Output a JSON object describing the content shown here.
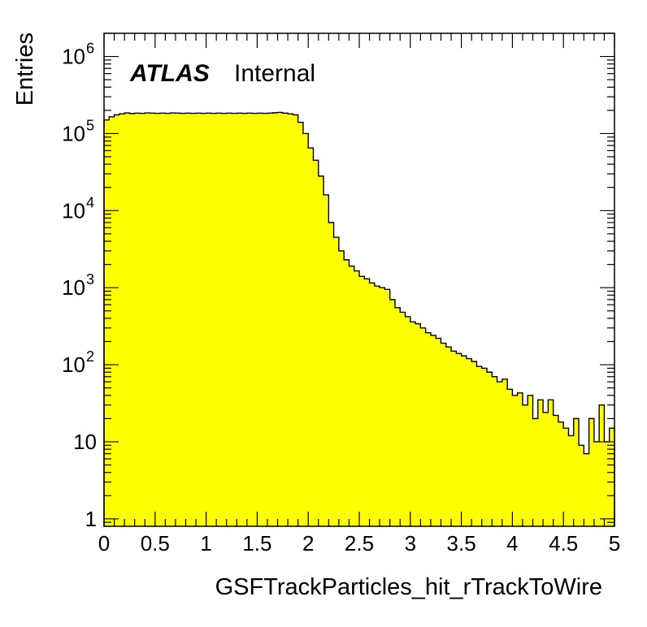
{
  "chart_data": {
    "type": "bar",
    "histogram_style": "filled-step",
    "fill_color": "#ffff00",
    "line_color": "#000000",
    "xlabel": "GSFTrackParticles_hit_rTrackToWire",
    "ylabel": "Entries",
    "xlim": [
      0,
      5
    ],
    "ylim": [
      0.8,
      2000000
    ],
    "y_scale": "log",
    "grid": false,
    "x_ticks": [
      {
        "value": 0,
        "label": "0"
      },
      {
        "value": 0.5,
        "label": "0.5"
      },
      {
        "value": 1,
        "label": "1"
      },
      {
        "value": 1.5,
        "label": "1.5"
      },
      {
        "value": 2,
        "label": "2"
      },
      {
        "value": 2.5,
        "label": "2.5"
      },
      {
        "value": 3,
        "label": "3"
      },
      {
        "value": 3.5,
        "label": "3.5"
      },
      {
        "value": 4,
        "label": "4"
      },
      {
        "value": 4.5,
        "label": "4.5"
      },
      {
        "value": 5,
        "label": "5"
      }
    ],
    "y_ticks": [
      {
        "value": 1,
        "base": "1",
        "exp": ""
      },
      {
        "value": 10,
        "base": "10",
        "exp": ""
      },
      {
        "value": 100,
        "base": "10",
        "exp": "2"
      },
      {
        "value": 1000,
        "base": "10",
        "exp": "3"
      },
      {
        "value": 10000,
        "base": "10",
        "exp": "4"
      },
      {
        "value": 100000,
        "base": "10",
        "exp": "5"
      },
      {
        "value": 1000000,
        "base": "10",
        "exp": "6"
      }
    ],
    "bin_edges_start": 0,
    "bin_width": 0.05,
    "values": [
      150000,
      165000,
      175000,
      180000,
      185000,
      182000,
      184000,
      183000,
      185000,
      184000,
      183000,
      184000,
      183000,
      185000,
      184000,
      183000,
      184000,
      183000,
      184000,
      183000,
      184000,
      183000,
      184000,
      183000,
      184000,
      183000,
      184000,
      183000,
      184000,
      183000,
      184000,
      183000,
      184000,
      186000,
      188000,
      184000,
      180000,
      175000,
      140000,
      100000,
      65000,
      45000,
      28000,
      16000,
      7000,
      4500,
      3000,
      2300,
      1900,
      1650,
      1400,
      1300,
      1150,
      1050,
      1000,
      950,
      700,
      550,
      480,
      420,
      360,
      340,
      300,
      260,
      240,
      220,
      190,
      170,
      150,
      140,
      130,
      120,
      110,
      95,
      90,
      80,
      70,
      60,
      65,
      48,
      40,
      43,
      30,
      40,
      20,
      35,
      24,
      35,
      22,
      18,
      15,
      12,
      20,
      9,
      7,
      20,
      10,
      30,
      10,
      15
    ],
    "annotations": [
      {
        "text": "ATLAS",
        "style": "bold-italic"
      },
      {
        "text": "Internal",
        "style": "normal"
      }
    ]
  }
}
